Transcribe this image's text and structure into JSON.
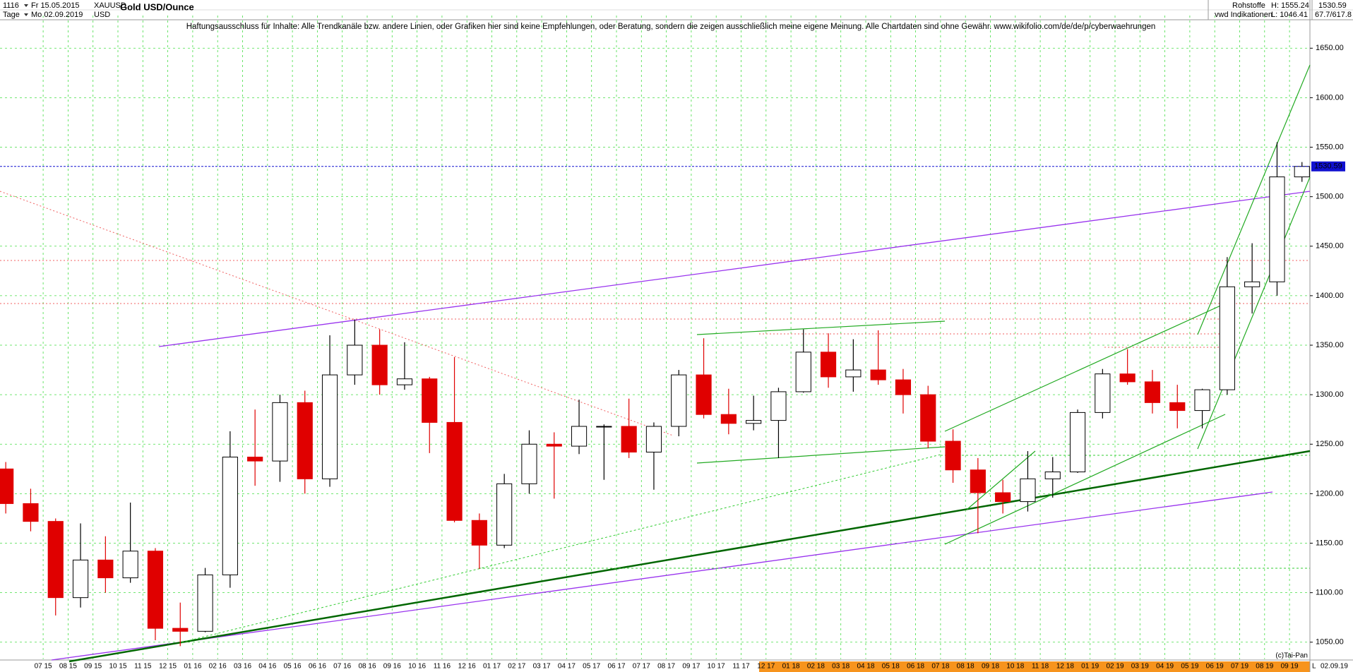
{
  "header": {
    "count": "1116",
    "from": "Fr 15.05.2015",
    "symbol": "XAUUSD",
    "title": "Gold USD/Ounce",
    "period": "Tage",
    "to": "Mo 02.09.2019",
    "currency": "USD",
    "group": "Rohstoffe",
    "source": "vwd Indikationen",
    "high": "H: 1555.24",
    "low": "L: 1046.41",
    "quote": "1530.59",
    "extra": "67.7/617.8"
  },
  "disclaimer": "Haftungsausschluss für Inhalte: Alle Trendkanäle bzw. andere Linien, oder Grafiken hier sind keine Empfehlungen, oder Beratung, sondern die zeigen ausschließlich meine eigene Meinung. Alle Chartdaten sind ohne Gewähr.  www.wikifolio.com/de/de/p/cyberwaehrungen",
  "footer": {
    "copyright": "(c)Tai-Pan",
    "flag": "L",
    "date": "02.09.19"
  },
  "chart_data": {
    "type": "candlestick",
    "categories": [
      null,
      null,
      "07 15",
      "08 15",
      "09 15",
      "10 15",
      "11 15",
      "12 15",
      "01 16",
      "02 16",
      "03 16",
      "04 16",
      "05 16",
      "06 16",
      "07 16",
      "08 16",
      "09 16",
      "10 16",
      "11 16",
      "12 16",
      "01 17",
      "02 17",
      "03 17",
      "04 17",
      "05 17",
      "06 17",
      "07 17",
      "08 17",
      "09 17",
      "10 17",
      "11 17",
      "12 17",
      "01 18",
      "02 18",
      "03 18",
      "04 18",
      "05 18",
      "06 18",
      "07 18",
      "08 18",
      "09 18",
      "10 18",
      "11 18",
      "12 18",
      "01 19",
      "02 19",
      "03 19",
      "04 19",
      "05 19",
      "06 19",
      "07 19",
      "08 19",
      "09 19"
    ],
    "open": [
      1225,
      1190,
      1172,
      1095,
      1133,
      1115,
      1142,
      1064,
      1061,
      1118,
      1237,
      1233,
      1292,
      1215,
      1320,
      1350,
      1310,
      1316,
      1272,
      1173,
      1148,
      1210,
      1250,
      1248,
      1268,
      1268,
      1242,
      1268,
      1320,
      1280,
      1271,
      1274,
      1303,
      1343,
      1318,
      1325,
      1315,
      1300,
      1253,
      1224,
      1201,
      1192,
      1215,
      1222,
      1282,
      1321,
      1313,
      1292,
      1284,
      1305,
      1409,
      1414,
      1520
    ],
    "high": [
      1232,
      1205,
      1175,
      1170,
      1157,
      1191,
      1145,
      1090,
      1125,
      1263,
      1285,
      1300,
      1304,
      1360,
      1376,
      1366,
      1353,
      1318,
      1338,
      1180,
      1220,
      1264,
      1262,
      1295,
      1270,
      1296,
      1272,
      1325,
      1357,
      1306,
      1299,
      1307,
      1366,
      1362,
      1356,
      1365,
      1326,
      1309,
      1265,
      1236,
      1214,
      1243,
      1237,
      1285,
      1326,
      1346,
      1325,
      1310,
      1306,
      1439,
      1453,
      1555,
      1535
    ],
    "low": [
      1180,
      1162,
      1077,
      1085,
      1100,
      1110,
      1052,
      1046,
      1060,
      1105,
      1208,
      1212,
      1200,
      1207,
      1310,
      1300,
      1305,
      1241,
      1171,
      1124,
      1145,
      1200,
      1195,
      1240,
      1214,
      1236,
      1204,
      1258,
      1276,
      1260,
      1264,
      1236,
      1302,
      1307,
      1303,
      1310,
      1281,
      1246,
      1211,
      1160,
      1180,
      1182,
      1196,
      1221,
      1276,
      1310,
      1281,
      1266,
      1266,
      1300,
      1382,
      1400,
      1515
    ],
    "close": [
      1190,
      1172,
      1095,
      1133,
      1115,
      1142,
      1064,
      1061,
      1118,
      1237,
      1233,
      1292,
      1215,
      1320,
      1350,
      1310,
      1316,
      1272,
      1173,
      1148,
      1210,
      1250,
      1248,
      1268,
      1268,
      1242,
      1268,
      1320,
      1280,
      1271,
      1274,
      1303,
      1343,
      1318,
      1325,
      1315,
      1300,
      1253,
      1224,
      1201,
      1192,
      1215,
      1222,
      1282,
      1321,
      1313,
      1292,
      1284,
      1305,
      1409,
      1414,
      1520,
      1530.59
    ],
    "up_color": "#000000",
    "down_color": "#e00000",
    "grid_color": "#44dd44",
    "last_color": "#1010d0",
    "last": 1530.59,
    "ylim": [
      1033,
      1683
    ],
    "yticks": [
      {
        "value": 1050,
        "label": "1050.00"
      },
      {
        "value": 1100,
        "label": "1100.00"
      },
      {
        "value": 1150,
        "label": "1150.00"
      },
      {
        "value": 1200,
        "label": "1200.00"
      },
      {
        "value": 1250,
        "label": "1250.00"
      },
      {
        "value": 1300,
        "label": "1300.00"
      },
      {
        "value": 1350,
        "label": "1350.00"
      },
      {
        "value": 1400,
        "label": "1400.00"
      },
      {
        "value": 1450,
        "label": "1450.00"
      },
      {
        "value": 1500,
        "label": "1500.00"
      },
      {
        "value": 1550,
        "label": "1550.00"
      },
      {
        "value": 1600,
        "label": "1600.00"
      },
      {
        "value": 1650,
        "label": "1650.00"
      }
    ],
    "grid": true
  }
}
